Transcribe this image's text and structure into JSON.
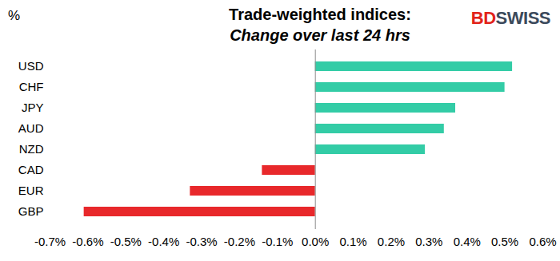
{
  "chart_data": {
    "type": "bar",
    "orientation": "horizontal",
    "title": "Trade-weighted indices:",
    "subtitle": "Change over last 24 hrs",
    "axis_label": "%",
    "logo": "BDSWISS",
    "categories": [
      "USD",
      "CHF",
      "JPY",
      "AUD",
      "NZD",
      "CAD",
      "EUR",
      "GBP"
    ],
    "values": [
      0.52,
      0.5,
      0.37,
      0.34,
      0.29,
      -0.14,
      -0.33,
      -0.61
    ],
    "colors": [
      "#33cca6",
      "#33cca6",
      "#33cca6",
      "#33cca6",
      "#33cca6",
      "#e8282b",
      "#e8282b",
      "#e8282b"
    ],
    "xlim": [
      -0.7,
      0.6
    ],
    "xticks": [
      {
        "value": -0.7,
        "label": "-0.7%"
      },
      {
        "value": -0.6,
        "label": "-0.6%"
      },
      {
        "value": -0.5,
        "label": "-0.5%"
      },
      {
        "value": -0.4,
        "label": "-0.4%"
      },
      {
        "value": -0.3,
        "label": "-0.3%"
      },
      {
        "value": -0.2,
        "label": "-0.2%"
      },
      {
        "value": -0.1,
        "label": "-0.1%"
      },
      {
        "value": 0,
        "label": "0.0%"
      },
      {
        "value": 0.1,
        "label": "0.1%"
      },
      {
        "value": 0.2,
        "label": "0.2%"
      },
      {
        "value": 0.3,
        "label": "0.3%"
      },
      {
        "value": 0.4,
        "label": "0.4%"
      },
      {
        "value": 0.5,
        "label": "0.5%"
      },
      {
        "value": 0.6,
        "label": "0.6%"
      }
    ],
    "grid": false,
    "data_labels": false
  }
}
